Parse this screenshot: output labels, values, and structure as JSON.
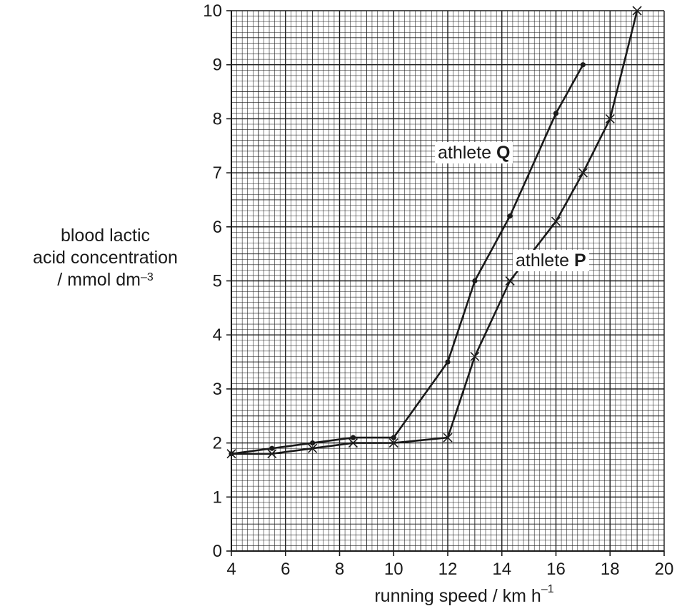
{
  "chart_data": {
    "type": "line",
    "xlabel": "running speed / km h",
    "xlabel_unit_exponent": "–1",
    "ylabel_lines": [
      "blood lactic",
      "acid concentration",
      "/ mmol dm"
    ],
    "ylabel_unit_exponent": "–3",
    "xlim": [
      4,
      20
    ],
    "ylim": [
      0,
      10
    ],
    "xticks": [
      4,
      6,
      8,
      10,
      12,
      14,
      16,
      18,
      20
    ],
    "yticks": [
      0,
      1,
      2,
      3,
      4,
      5,
      6,
      7,
      8,
      9,
      10
    ],
    "grid": "on",
    "series": [
      {
        "label_prefix": "athlete ",
        "label_letter": "Q",
        "marker": "dot",
        "x": [
          4,
          5.5,
          7,
          8.5,
          10,
          12,
          13,
          14.3,
          16,
          17
        ],
        "y": [
          1.8,
          1.9,
          2.0,
          2.1,
          2.1,
          3.5,
          5.0,
          6.2,
          8.1,
          9.0
        ]
      },
      {
        "label_prefix": "athlete ",
        "label_letter": "P",
        "marker": "cross",
        "x": [
          4,
          5.5,
          7,
          8.5,
          10,
          12,
          13,
          14.3,
          16,
          17,
          18,
          19
        ],
        "y": [
          1.8,
          1.8,
          1.9,
          2.0,
          2.0,
          2.1,
          3.6,
          5.0,
          6.1,
          7.0,
          8.0,
          10.0
        ]
      }
    ]
  }
}
